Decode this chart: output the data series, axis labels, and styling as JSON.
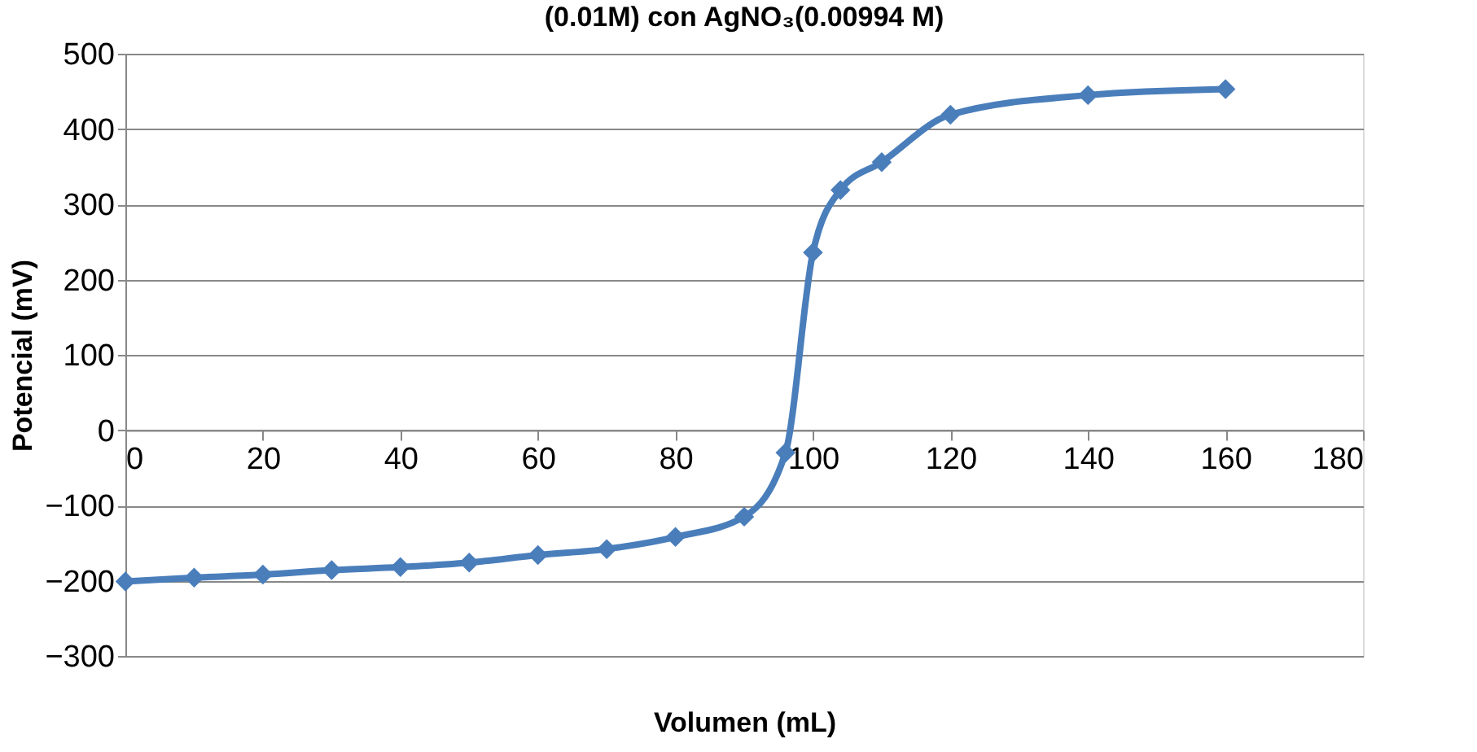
{
  "chart_data": {
    "type": "line",
    "title": "(0.01M) con AgNO₃(0.00994 M)",
    "xlabel": "Volumen (mL)",
    "ylabel": "Potencial (mV)",
    "x": [
      0,
      10,
      20,
      30,
      40,
      50,
      60,
      70,
      80,
      90,
      96,
      100,
      104,
      110,
      120,
      140,
      160
    ],
    "series": [
      {
        "color": "#4a7ebb",
        "values": [
          -201,
          -196,
          -192,
          -186,
          -182,
          -176,
          -166,
          -158,
          -142,
          -115,
          -30,
          236,
          319,
          356,
          419,
          445,
          453
        ]
      }
    ],
    "xlim": [
      0,
      180
    ],
    "xticks": [
      0,
      20,
      40,
      60,
      80,
      100,
      120,
      140,
      160,
      180
    ],
    "ylim": [
      -300,
      500
    ],
    "yticks": [
      -300,
      -200,
      -100,
      0,
      100,
      200,
      300,
      400,
      500
    ],
    "grid": "y",
    "marker": "diamond"
  }
}
